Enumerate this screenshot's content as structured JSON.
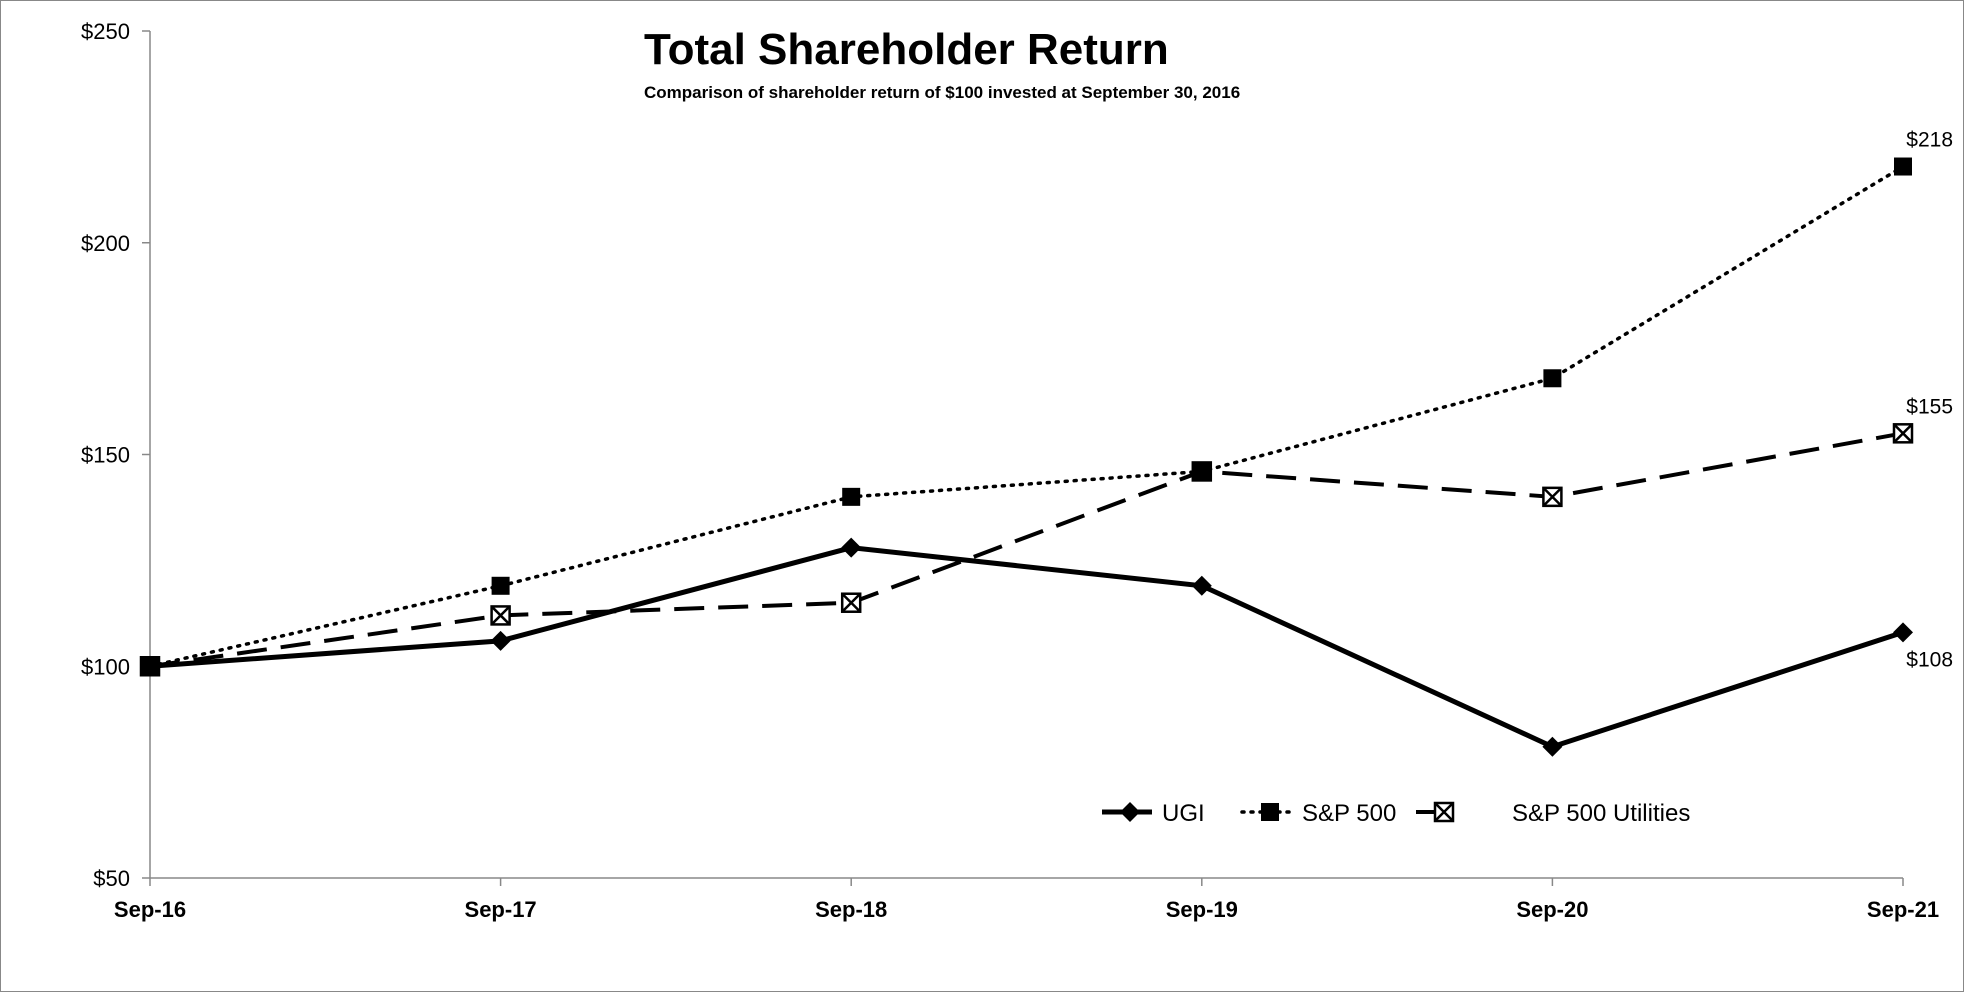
{
  "chart_data": {
    "type": "line",
    "title": "Total Shareholder Return",
    "subtitle": "Comparison of shareholder return of $100 invested at September 30, 2016",
    "categories": [
      "Sep-16",
      "Sep-17",
      "Sep-18",
      "Sep-19",
      "Sep-20",
      "Sep-21"
    ],
    "ylim": [
      50,
      250
    ],
    "yticks": [
      50,
      100,
      150,
      200,
      250
    ],
    "ytick_labels": [
      "$50",
      "$100",
      "$150",
      "$200",
      "$250"
    ],
    "grid": false,
    "legend_position": "bottom-right",
    "series": [
      {
        "name": "UGI",
        "style": "solid",
        "marker": "diamond",
        "values": [
          100,
          106,
          128,
          119,
          81,
          108
        ],
        "end_label": "$108"
      },
      {
        "name": "S&P 500",
        "style": "dotted",
        "marker": "square",
        "values": [
          100,
          119,
          140,
          146,
          168,
          218
        ],
        "end_label": "$218"
      },
      {
        "name": "S&P 500 Utilities",
        "style": "dashed",
        "marker": "x-square",
        "values": [
          100,
          112,
          115,
          146,
          140,
          155
        ],
        "end_label": "$155"
      }
    ],
    "line_color": "#000000"
  }
}
